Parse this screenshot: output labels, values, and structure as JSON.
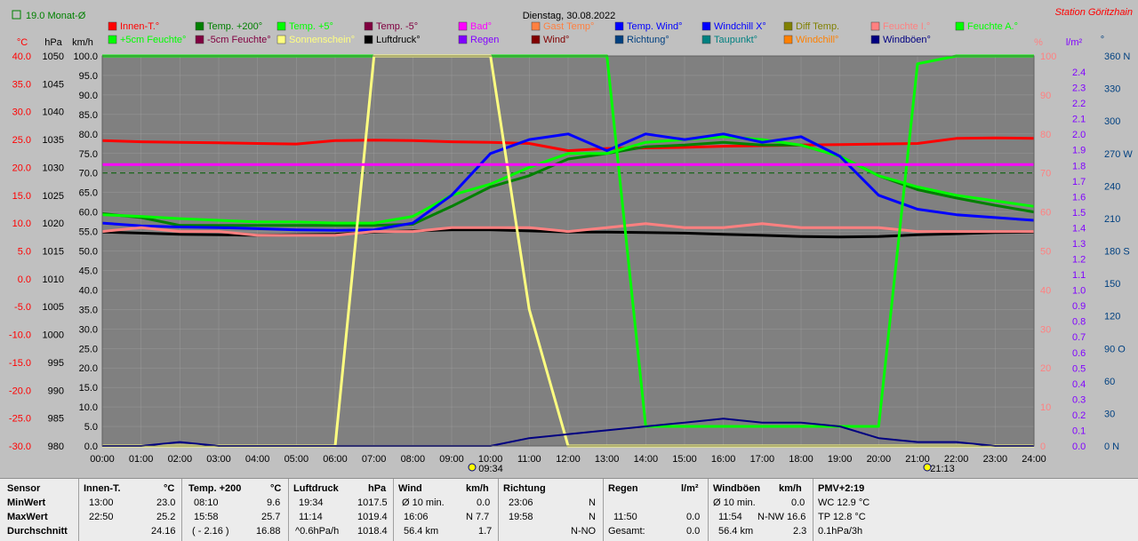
{
  "header": {
    "title": "Dienstag, 30.08.2022",
    "station": "Station Göritzhain",
    "monat": "19.0 Monat-Ø"
  },
  "units": {
    "c": "°C",
    "hpa": "hPa",
    "kmh": "km/h",
    "pct": "%",
    "lm2": "l/m²",
    "deg": "°"
  },
  "legend": [
    {
      "label": "Innen-T.°",
      "color": "#ff0000"
    },
    {
      "label": "Temp. +200°",
      "color": "#008000"
    },
    {
      "label": "Temp. +5°",
      "color": "#00ff00"
    },
    {
      "label": "Temp. -5°",
      "color": "#800040"
    },
    {
      "label": "Bad°",
      "color": "#ff00ff"
    },
    {
      "label": "Gast Temp°",
      "color": "#ff8040"
    },
    {
      "label": "Temp. Wind°",
      "color": "#0000ff"
    },
    {
      "label": "Windchill X°",
      "color": "#0000ff"
    },
    {
      "label": "Diff Temp.",
      "color": "#808000"
    },
    {
      "label": "Feuchte I.°",
      "color": "#ff8080"
    },
    {
      "label": "Feuchte A.°",
      "color": "#00ff00"
    },
    {
      "label": "+5cm Feuchte°",
      "color": "#00ff00"
    },
    {
      "label": "-5cm Feuchte°",
      "color": "#800040"
    },
    {
      "label": "Sonnenschein°",
      "color": "#ffff80"
    },
    {
      "label": "Luftdruck°",
      "color": "#000000"
    },
    {
      "label": "Regen",
      "color": "#8000ff"
    },
    {
      "label": "Wind°",
      "color": "#800000"
    },
    {
      "label": "Richtung°",
      "color": "#004080"
    },
    {
      "label": "Taupunkt°",
      "color": "#008080"
    },
    {
      "label": "Windchill°",
      "color": "#ff8000"
    },
    {
      "label": "Windböen°",
      "color": "#000080"
    }
  ],
  "axes": {
    "temp": [
      "40.0",
      "35.0",
      "30.0",
      "25.0",
      "20.0",
      "15.0",
      "10.0",
      "5.0",
      "0.0",
      "-5.0",
      "-10.0",
      "-15.0",
      "-20.0",
      "-25.0",
      "-30.0"
    ],
    "hpa": [
      "1050",
      "1045",
      "1040",
      "1035",
      "1030",
      "1025",
      "1020",
      "1015",
      "1010",
      "1005",
      "1000",
      "995",
      "990",
      "985",
      "980"
    ],
    "kmh": [
      "100.0",
      "95.0",
      "90.0",
      "85.0",
      "80.0",
      "75.0",
      "70.0",
      "65.0",
      "60.0",
      "55.0",
      "50.0",
      "45.0",
      "40.0",
      "35.0",
      "30.0",
      "25.0",
      "20.0",
      "15.0",
      "10.0",
      "5.0",
      "0.0"
    ],
    "pct": [
      "100",
      "90",
      "80",
      "70",
      "60",
      "50",
      "40",
      "30",
      "20",
      "10",
      "0"
    ],
    "rain": [
      "2.4",
      "2.3",
      "2.2",
      "2.1",
      "2.0",
      "1.9",
      "1.8",
      "1.7",
      "1.6",
      "1.5",
      "1.4",
      "1.3",
      "1.2",
      "1.1",
      "1.0",
      "0.9",
      "0.8",
      "0.7",
      "0.6",
      "0.5",
      "0.4",
      "0.3",
      "0.2",
      "0.1",
      "0.0"
    ],
    "dir": [
      "360 N",
      "330",
      "300",
      "270 W",
      "240",
      "210",
      "180 S",
      "150",
      "120",
      "90 O",
      "60",
      "30",
      "0 N"
    ],
    "time": [
      "00:00",
      "01:00",
      "02:00",
      "03:00",
      "04:00",
      "05:00",
      "06:00",
      "07:00",
      "08:00",
      "09:00",
      "10:00",
      "11:00",
      "12:00",
      "13:00",
      "14:00",
      "15:00",
      "16:00",
      "17:00",
      "18:00",
      "19:00",
      "20:00",
      "21:00",
      "22:00",
      "23:00",
      "24:00"
    ],
    "sunrise": "09:34",
    "sunset": "21:13"
  },
  "chart_data": {
    "type": "line",
    "xlabel": "",
    "ylabel": "",
    "x_hours": [
      0,
      1,
      2,
      3,
      4,
      5,
      6,
      7,
      8,
      9,
      10,
      11,
      12,
      13,
      14,
      15,
      16,
      17,
      18,
      19,
      20,
      21,
      22,
      23,
      24
    ],
    "series": [
      {
        "name": "Innen-T.°",
        "unit": "°C",
        "color": "#ff0000",
        "values": [
          24.8,
          24.6,
          24.5,
          24.4,
          24.3,
          24.2,
          24.8,
          24.9,
          24.8,
          24.6,
          24.5,
          24.3,
          23.0,
          23.4,
          23.5,
          23.6,
          23.8,
          23.9,
          24.0,
          24.1,
          24.2,
          24.3,
          25.2,
          25.3,
          25.2
        ]
      },
      {
        "name": "Temp. +200°",
        "unit": "°C",
        "color": "#008000",
        "values": [
          11.7,
          11.0,
          9.6,
          9.6,
          9.6,
          9.6,
          9.6,
          9.6,
          9.8,
          13.0,
          16.5,
          18.5,
          21.5,
          22.5,
          23.7,
          24.0,
          24.5,
          24.0,
          24.0,
          22.0,
          18.5,
          16.0,
          14.5,
          13.2,
          12.0
        ]
      },
      {
        "name": "Temp. +5°",
        "unit": "°C",
        "color": "#00ff00",
        "values": [
          11.5,
          11.2,
          10.8,
          10.5,
          10.2,
          10.2,
          10.0,
          10.0,
          11.2,
          15.0,
          17.0,
          20.0,
          22.5,
          22.5,
          24.5,
          25.0,
          25.5,
          25.0,
          24.0,
          22.0,
          18.5,
          16.5,
          15.0,
          14.0,
          13.0
        ]
      },
      {
        "name": "Luftdruck°",
        "unit": "hPa",
        "color": "#000000",
        "values": [
          1018.4,
          1018.2,
          1018.0,
          1017.9,
          1017.8,
          1017.9,
          1018.0,
          1018.4,
          1018.6,
          1018.8,
          1018.8,
          1018.6,
          1018.4,
          1018.4,
          1018.3,
          1018.2,
          1018.0,
          1017.8,
          1017.6,
          1017.5,
          1017.6,
          1017.9,
          1018.1,
          1018.3,
          1018.4
        ]
      },
      {
        "name": "Temp. Wind°",
        "unit": "°C",
        "color": "#0000ff",
        "values": [
          10.0,
          9.5,
          9.3,
          9.2,
          9.0,
          8.8,
          8.7,
          8.8,
          10.0,
          15.0,
          22.5,
          25.0,
          26.0,
          23.0,
          26.0,
          25.0,
          26.0,
          24.5,
          25.5,
          22.0,
          15.0,
          12.5,
          11.5,
          11.0,
          10.5
        ]
      },
      {
        "name": "Feuchte I.°",
        "unit": "%",
        "color": "#ff8080",
        "values": [
          55,
          56,
          55,
          55,
          54,
          54,
          54,
          55,
          55,
          56,
          56,
          56,
          55,
          56,
          57,
          56,
          56,
          57,
          56,
          56,
          56,
          55,
          55,
          55,
          55
        ]
      },
      {
        "name": "Feuchte A.°",
        "unit": "%",
        "color": "#00ff00",
        "values": [
          100,
          100,
          100,
          100,
          100,
          100,
          100,
          100,
          100,
          100,
          100,
          100,
          100,
          100,
          5,
          5,
          5,
          5,
          5,
          5,
          5,
          98,
          100,
          100,
          100
        ]
      },
      {
        "name": "Sonnenschein°",
        "unit": "km/h",
        "color": "#ffff80",
        "values": [
          0,
          0,
          0,
          0,
          0,
          0,
          0,
          100,
          100,
          100,
          100,
          35,
          0,
          0,
          0,
          0,
          0,
          0,
          0,
          0,
          0,
          0,
          0,
          0,
          0
        ]
      },
      {
        "name": "Bad°",
        "unit": "°C",
        "color": "#ff00ff",
        "values": [
          20.5,
          20.5,
          20.5,
          20.5,
          20.5,
          20.5,
          20.5,
          20.5,
          20.5,
          20.5,
          20.5,
          20.5,
          20.5,
          20.5,
          20.5,
          20.5,
          20.5,
          20.5,
          20.5,
          20.5,
          20.5,
          20.5,
          20.5,
          20.5,
          20.5
        ]
      },
      {
        "name": "Windböen°",
        "unit": "km/h",
        "color": "#000080",
        "values": [
          0,
          0,
          1,
          0,
          0,
          0,
          0,
          0,
          0,
          0,
          0,
          2,
          3,
          4,
          5,
          6,
          7,
          6,
          6,
          5,
          2,
          1,
          1,
          0,
          0
        ]
      }
    ]
  },
  "table": {
    "rows": [
      "Sensor",
      "MinWert",
      "MaxWert",
      "Durchschnitt"
    ],
    "innen": {
      "head": "Innen-T.",
      "unit": "°C",
      "min_t": "13:00",
      "min_v": "23.0",
      "max_t": "22:50",
      "max_v": "25.2",
      "avg": "24.16"
    },
    "temp": {
      "head": "Temp. +200",
      "unit": "°C",
      "min_t": "08:10",
      "min_v": "9.6",
      "max_t": "15:58",
      "max_v": "25.7",
      "avg_note": "( - 2.16 )",
      "avg": "16.88"
    },
    "druck": {
      "head": "Luftdruck",
      "unit": "hPa",
      "min_t": "19:34",
      "min_v": "1017.5",
      "max_t": "11:14",
      "max_v": "1019.4",
      "avg_note": "^0.6hPa/h",
      "avg": "1018.4"
    },
    "wind": {
      "head": "Wind",
      "unit": "km/h",
      "min_t": "Ø 10 min.",
      "min_v": "0.0",
      "max_t": "16:06",
      "max_v": "N 7.7",
      "avg_note": "56.4 km",
      "avg": "1.7"
    },
    "richt": {
      "head": "Richtung",
      "min_t": "23:06",
      "min_v": "N",
      "max_t": "19:58",
      "max_v": "N",
      "avg": "N-NO"
    },
    "regen": {
      "head": "Regen",
      "unit": "l/m²",
      "max_t": "11:50",
      "max_v": "0.0",
      "avg_note": "Gesamt:",
      "avg": "0.0"
    },
    "boen": {
      "head": "Windböen",
      "unit": "km/h",
      "min_t": "Ø 10 min.",
      "min_v": "0.0",
      "max_t": "11:54",
      "max_v": "N-NW 16.6",
      "avg_note": "56.4 km",
      "avg": "2.3"
    },
    "pmv": {
      "head": "PMV+2:19",
      "l1": "WC 12.9 °C",
      "l2": "TP 12.8 °C",
      "l3": "0.1hPa/3h"
    }
  }
}
